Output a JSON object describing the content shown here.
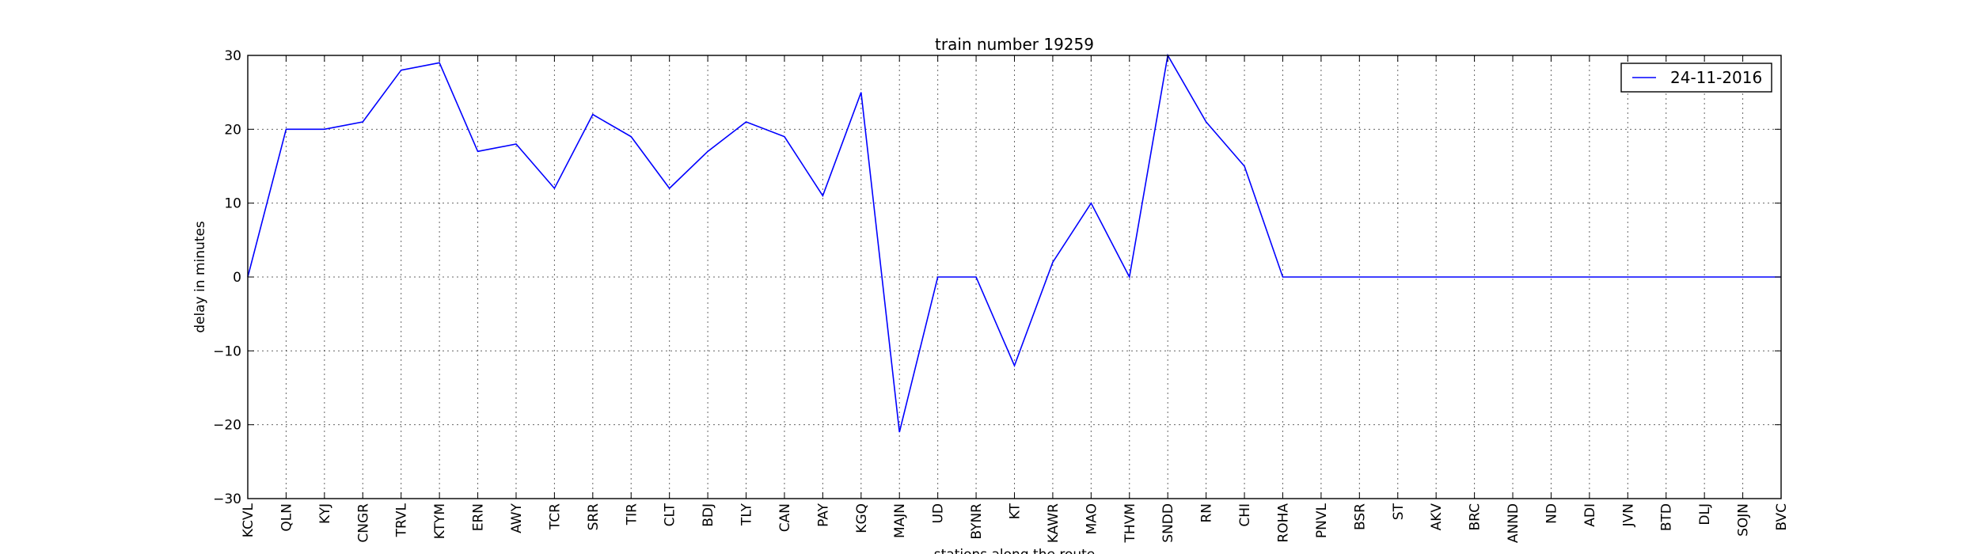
{
  "chart_data": {
    "type": "line",
    "title": "train number 19259",
    "xlabel": "stations along the route",
    "ylabel": "delay in minutes",
    "ylim": [
      -30,
      30
    ],
    "yticks": [
      -30,
      -20,
      -10,
      0,
      10,
      20,
      30
    ],
    "ytick_labels": [
      "−30",
      "−20",
      "−10",
      "0",
      "10",
      "20",
      "30"
    ],
    "grid": true,
    "legend_position": "top-right",
    "categories": [
      "KCVL",
      "QLN",
      "KYJ",
      "CNGR",
      "TRVL",
      "KTYM",
      "ERN",
      "AWY",
      "TCR",
      "SRR",
      "TIR",
      "CLT",
      "BDJ",
      "TLY",
      "CAN",
      "PAY",
      "KGQ",
      "MAJN",
      "UD",
      "BYNR",
      "KT",
      "KAWR",
      "MAO",
      "THVM",
      "SNDD",
      "RN",
      "CHI",
      "ROHA",
      "PNVL",
      "BSR",
      "ST",
      "AKV",
      "BRC",
      "ANND",
      "ND",
      "ADI",
      "JVN",
      "BTD",
      "DLJ",
      "SOJN",
      "BVC"
    ],
    "series": [
      {
        "name": "24-11-2016",
        "color": "#0000ff",
        "values": [
          0,
          20,
          20,
          21,
          28,
          29,
          17,
          18,
          12,
          22,
          19,
          12,
          17,
          21,
          19,
          11,
          25,
          -21,
          0,
          0,
          -12,
          2,
          10,
          0,
          30,
          21,
          15,
          0,
          0,
          0,
          0,
          0,
          0,
          0,
          0,
          0,
          0,
          0,
          0,
          0,
          0
        ]
      }
    ]
  }
}
